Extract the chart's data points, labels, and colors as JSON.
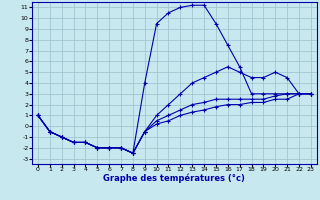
{
  "xlabel": "Graphe des températures (°c)",
  "xlim": [
    -0.5,
    23.5
  ],
  "ylim": [
    -3.5,
    11.5
  ],
  "xticks": [
    0,
    1,
    2,
    3,
    4,
    5,
    6,
    7,
    8,
    9,
    10,
    11,
    12,
    13,
    14,
    15,
    16,
    17,
    18,
    19,
    20,
    21,
    22,
    23
  ],
  "yticks": [
    -3,
    -2,
    -1,
    0,
    1,
    2,
    3,
    4,
    5,
    6,
    7,
    8,
    9,
    10,
    11
  ],
  "background_color": "#c8e8f0",
  "grid_color": "#9ac0cc",
  "line_color": "#0000aa",
  "curves": [
    {
      "comment": "main high arc - temperature max curve",
      "x": [
        0,
        1,
        2,
        3,
        4,
        5,
        6,
        7,
        8,
        9,
        10,
        11,
        12,
        13,
        14,
        15,
        16,
        17,
        18,
        19,
        20,
        21,
        22,
        23
      ],
      "y": [
        1,
        -0.5,
        -1,
        -1.5,
        -1.5,
        -2,
        -2,
        -2,
        -2.5,
        4,
        9.5,
        10.5,
        11,
        11.2,
        11.2,
        9.5,
        7.5,
        5.5,
        3,
        3,
        3,
        3,
        3,
        3
      ]
    },
    {
      "comment": "medium arc - temperature mid curve",
      "x": [
        0,
        1,
        2,
        3,
        4,
        5,
        6,
        7,
        8,
        9,
        10,
        11,
        12,
        13,
        14,
        15,
        16,
        17,
        18,
        19,
        20,
        21,
        22,
        23
      ],
      "y": [
        1,
        -0.5,
        -1,
        -1.5,
        -1.5,
        -2,
        -2,
        -2,
        -2.5,
        -0.5,
        1,
        2,
        3,
        4,
        4.5,
        5,
        5.5,
        5,
        4.5,
        4.5,
        5,
        4.5,
        3,
        3
      ]
    },
    {
      "comment": "lower flat line 1",
      "x": [
        0,
        1,
        2,
        3,
        4,
        5,
        6,
        7,
        8,
        9,
        10,
        11,
        12,
        13,
        14,
        15,
        16,
        17,
        18,
        19,
        20,
        21,
        22,
        23
      ],
      "y": [
        1,
        -0.5,
        -1,
        -1.5,
        -1.5,
        -2,
        -2,
        -2,
        -2.5,
        -0.5,
        0.5,
        1,
        1.5,
        2,
        2.2,
        2.5,
        2.5,
        2.5,
        2.5,
        2.5,
        2.8,
        3,
        3,
        3
      ]
    },
    {
      "comment": "lowest flat line 2",
      "x": [
        0,
        1,
        2,
        3,
        4,
        5,
        6,
        7,
        8,
        9,
        10,
        11,
        12,
        13,
        14,
        15,
        16,
        17,
        18,
        19,
        20,
        21,
        22,
        23
      ],
      "y": [
        1,
        -0.5,
        -1,
        -1.5,
        -1.5,
        -2,
        -2,
        -2,
        -2.5,
        -0.5,
        0.2,
        0.5,
        1,
        1.3,
        1.5,
        1.8,
        2,
        2,
        2.2,
        2.2,
        2.5,
        2.5,
        3,
        3
      ]
    }
  ]
}
